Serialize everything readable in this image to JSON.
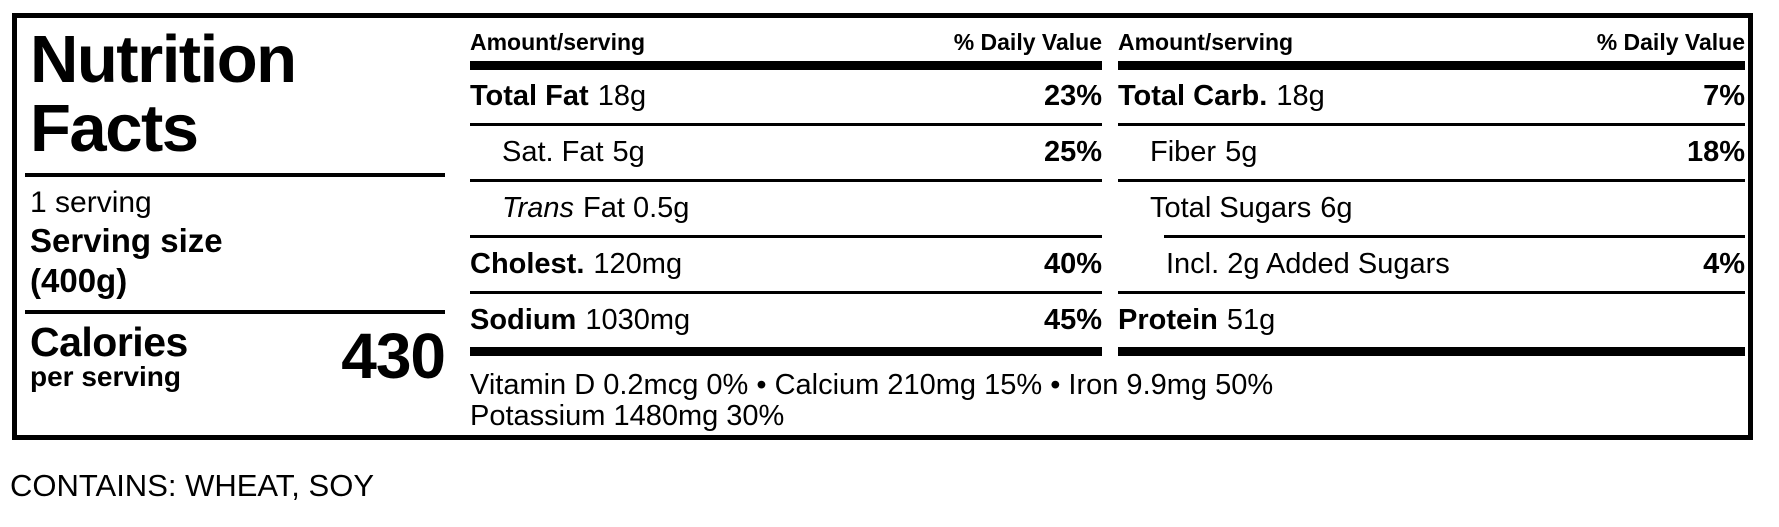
{
  "label": {
    "title": "Nutrition Facts",
    "title_lines": [
      "Nutrition",
      "Facts"
    ],
    "servings": "1 serving",
    "serving_size_label": "Serving size",
    "serving_size_value": "(400g)",
    "calories_label": "Calories",
    "calories_sublabel": "per serving",
    "calories_value": "430",
    "columns": [
      {
        "header_amount": "Amount/serving",
        "header_dv": "% Daily Value",
        "rows": [
          {
            "name": "Total Fat",
            "style": "bold",
            "amount": "18g",
            "dv": "23%",
            "indent": 0,
            "sep_after": "thin"
          },
          {
            "name": "Sat. Fat",
            "style": "regular",
            "amount": "5g",
            "dv": "25%",
            "indent": 1,
            "sep_after": "thin"
          },
          {
            "name": "Trans",
            "style": "italic",
            "amount": "Fat 0.5g",
            "dv": "",
            "indent": 1,
            "sep_after": "thin"
          },
          {
            "name": "Cholest.",
            "style": "bold",
            "amount": "120mg",
            "dv": "40%",
            "indent": 0,
            "sep_after": "thin"
          },
          {
            "name": "Sodium",
            "style": "bold",
            "amount": "1030mg",
            "dv": "45%",
            "indent": 0,
            "sep_after": "thick"
          }
        ]
      },
      {
        "header_amount": "Amount/serving",
        "header_dv": "% Daily Value",
        "rows": [
          {
            "name": "Total Carb.",
            "style": "bold",
            "amount": "18g",
            "dv": "7%",
            "indent": 0,
            "sep_after": "thin"
          },
          {
            "name": "Fiber",
            "style": "regular",
            "amount": "5g",
            "dv": "18%",
            "indent": 1,
            "sep_after": "thin"
          },
          {
            "name": "Total Sugars",
            "style": "regular",
            "amount": "6g",
            "dv": "",
            "indent": 1,
            "sep_after": "thin-indented"
          },
          {
            "name": "Incl. 2g Added Sugars",
            "style": "regular",
            "amount": "",
            "dv": "4%",
            "indent": 2,
            "sep_after": "thin"
          },
          {
            "name": "Protein",
            "style": "bold",
            "amount": "51g",
            "dv": "",
            "indent": 0,
            "sep_after": "thick"
          }
        ]
      }
    ],
    "micronutrients_line1": "Vitamin D 0.2mcg 0% • Calcium 210mg 15% • Iron 9.9mg 50%",
    "micronutrients_line2": "Potassium 1480mg 30%",
    "allergen_statement": "CONTAINS: WHEAT, SOY",
    "colors": {
      "ink": "#000000",
      "background": "#ffffff"
    }
  }
}
